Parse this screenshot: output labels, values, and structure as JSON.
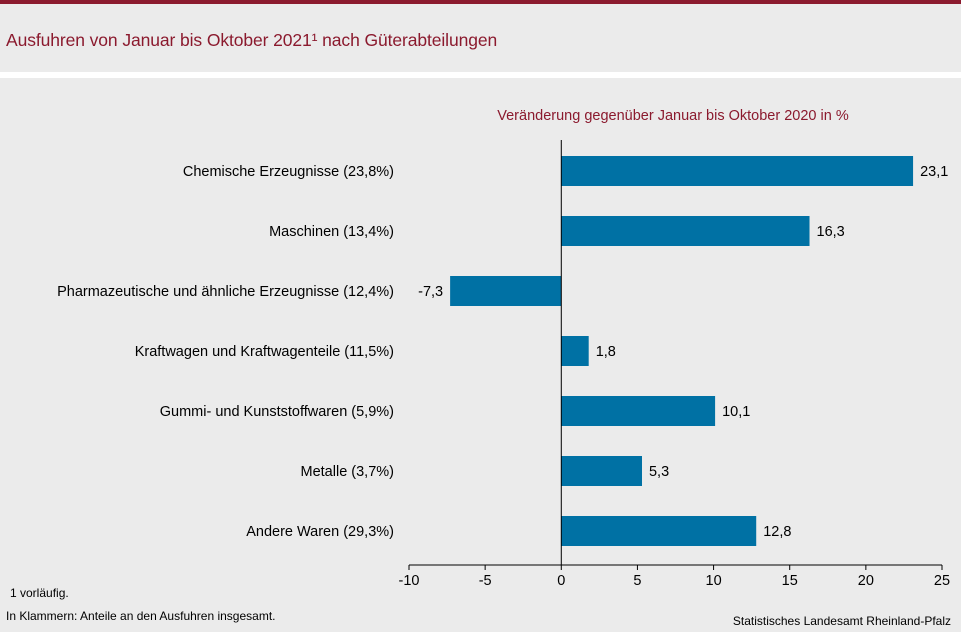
{
  "title": "Ausfuhren von Januar bis Oktober 2021¹ nach Güterabteilungen",
  "footnote": "1 vorläufig.",
  "note_parentheses": "In Klammern: Anteile an den Ausfuhren insgesamt.",
  "source": "Statistisches Landesamt Rheinland-Pfalz",
  "colors": {
    "bar": "#0071a4",
    "accent": "#8b1a2e"
  },
  "chart_data": {
    "type": "bar",
    "orientation": "horizontal",
    "subtitle": "Veränderung gegenüber Januar bis Oktober 2020 in %",
    "categories": [
      "Chemische Erzeugnisse (23,8%)",
      "Maschinen (13,4%)",
      "Pharmazeutische und ähnliche Erzeugnisse (12,4%)",
      "Kraftwagen und Kraftwagenteile (11,5%)",
      "Gummi- und Kunststoffwaren (5,9%)",
      "Metalle (3,7%)",
      "Andere Waren (29,3%)"
    ],
    "values": [
      23.1,
      16.3,
      -7.3,
      1.8,
      10.1,
      5.3,
      12.8
    ],
    "value_labels": [
      "23,1",
      "16,3",
      "-7,3",
      "1,8",
      "10,1",
      "5,3",
      "12,8"
    ],
    "xlim": [
      -10,
      25
    ],
    "xticks": [
      -10,
      -5,
      0,
      5,
      10,
      15,
      20,
      25
    ],
    "xtick_labels": [
      "-10",
      "-5",
      "0",
      "5",
      "10",
      "15",
      "20",
      "25"
    ],
    "grid": false
  }
}
